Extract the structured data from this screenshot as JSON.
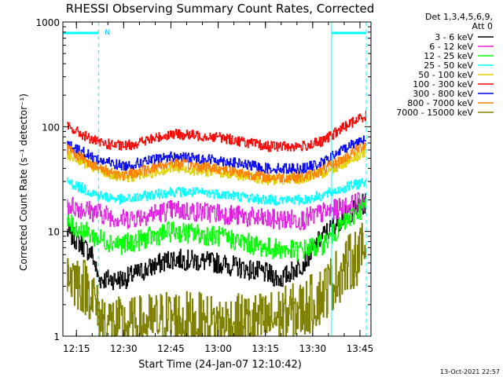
{
  "chart_data": {
    "type": "line",
    "title": "RHESSI Observing Summary Count Rates, Corrected",
    "ylabel": "Corrected Count Rate (s⁻¹ detector⁻¹)",
    "xlabel": "Start Time (24-Jan-07 12:10:42)",
    "y_scale": "log",
    "ylim": [
      1,
      1000
    ],
    "y_ticks": [
      {
        "value": 1,
        "label": "1"
      },
      {
        "value": 10,
        "label": "10"
      },
      {
        "value": 100,
        "label": "100"
      },
      {
        "value": 1000,
        "label": "1000"
      }
    ],
    "xlim": [
      "12:10:42",
      "13:48:30"
    ],
    "x_ticks": [
      "12:15",
      "12:30",
      "12:45",
      "13:00",
      "13:15",
      "13:30",
      "13:45"
    ],
    "timestamp": "13-Oct-2021 22:57",
    "legend": {
      "position": "right",
      "header": [
        "Det 1,3,4,5,6,9,",
        "Att 0"
      ]
    },
    "markers": {
      "night_bars": [
        {
          "start": "12:10:42",
          "end": "12:22:00"
        },
        {
          "start": "13:36:00",
          "end": "13:47:00"
        }
      ],
      "vertical_lines": [
        {
          "time": "12:10:42",
          "style": "solid"
        },
        {
          "time": "12:22:00",
          "style": "dashed"
        },
        {
          "time": "13:36:00",
          "style": "solid"
        },
        {
          "time": "13:47:00",
          "style": "dashed"
        }
      ],
      "saa_label": {
        "time": "12:22:30",
        "text": "N"
      }
    },
    "series": [
      {
        "name": "3 - 6 keV",
        "color": "#000000",
        "x": [
          "12:12",
          "12:20",
          "12:22",
          "12:30",
          "12:45",
          "13:00",
          "13:15",
          "13:20",
          "13:27",
          "13:33",
          "13:40",
          "13:47"
        ],
        "y": [
          10,
          6,
          3.5,
          3.5,
          5.5,
          5,
          4,
          3.5,
          5,
          9,
          14,
          19
        ]
      },
      {
        "name": "6 - 12 keV",
        "color": "#e020e0",
        "x": [
          "12:12",
          "12:22",
          "12:30",
          "12:45",
          "13:00",
          "13:15",
          "13:27",
          "13:33",
          "13:40",
          "13:47"
        ],
        "y": [
          18,
          15,
          13,
          16,
          15,
          13,
          13,
          15,
          17,
          20
        ]
      },
      {
        "name": "12 - 25 keV",
        "color": "#00ff00",
        "x": [
          "12:12",
          "12:22",
          "12:30",
          "12:45",
          "13:00",
          "13:15",
          "13:25",
          "13:33",
          "13:40",
          "13:47"
        ],
        "y": [
          12,
          8.5,
          7.5,
          10,
          9,
          7,
          6.5,
          7.5,
          12,
          18
        ]
      },
      {
        "name": "25 - 50 keV",
        "color": "#00ffff",
        "x": [
          "12:12",
          "12:22",
          "12:30",
          "12:45",
          "13:00",
          "13:15",
          "13:27",
          "13:33",
          "13:40",
          "13:47"
        ],
        "y": [
          30,
          22,
          20,
          24,
          23,
          20,
          20,
          22,
          26,
          30
        ]
      },
      {
        "name": "50 - 100 keV",
        "color": "#e0d000",
        "x": [
          "12:12",
          "12:22",
          "12:30",
          "12:45",
          "13:00",
          "13:15",
          "13:27",
          "13:33",
          "13:40",
          "13:47"
        ],
        "y": [
          55,
          38,
          32,
          40,
          37,
          31,
          32,
          36,
          45,
          58
        ]
      },
      {
        "name": "100 - 300 keV",
        "color": "#ff0000",
        "x": [
          "12:12",
          "12:22",
          "12:30",
          "12:45",
          "13:00",
          "13:15",
          "13:27",
          "13:33",
          "13:40",
          "13:47"
        ],
        "y": [
          100,
          70,
          65,
          85,
          80,
          65,
          65,
          72,
          100,
          130
        ]
      },
      {
        "name": "300 - 800 keV",
        "color": "#0000ff",
        "x": [
          "12:12",
          "12:22",
          "12:30",
          "12:45",
          "13:00",
          "13:15",
          "13:27",
          "13:33",
          "13:40",
          "13:47"
        ],
        "y": [
          68,
          48,
          42,
          52,
          48,
          40,
          40,
          45,
          62,
          80
        ]
      },
      {
        "name": "800 - 7000 keV",
        "color": "#ff8000",
        "x": [
          "12:12",
          "12:22",
          "12:30",
          "12:45",
          "13:00",
          "13:15",
          "13:27",
          "13:33",
          "13:40",
          "13:47"
        ],
        "y": [
          62,
          40,
          34,
          45,
          40,
          33,
          33,
          38,
          50,
          70
        ]
      },
      {
        "name": "7000 - 15000 keV",
        "color": "#808000",
        "x": [
          "12:12",
          "12:20",
          "12:22",
          "12:30",
          "12:45",
          "13:00",
          "13:15",
          "13:27",
          "13:33",
          "13:40",
          "13:47"
        ],
        "y": [
          4,
          2.6,
          1.5,
          1.2,
          1.5,
          1.3,
          1.4,
          1.8,
          2.5,
          4.5,
          7
        ]
      }
    ]
  }
}
